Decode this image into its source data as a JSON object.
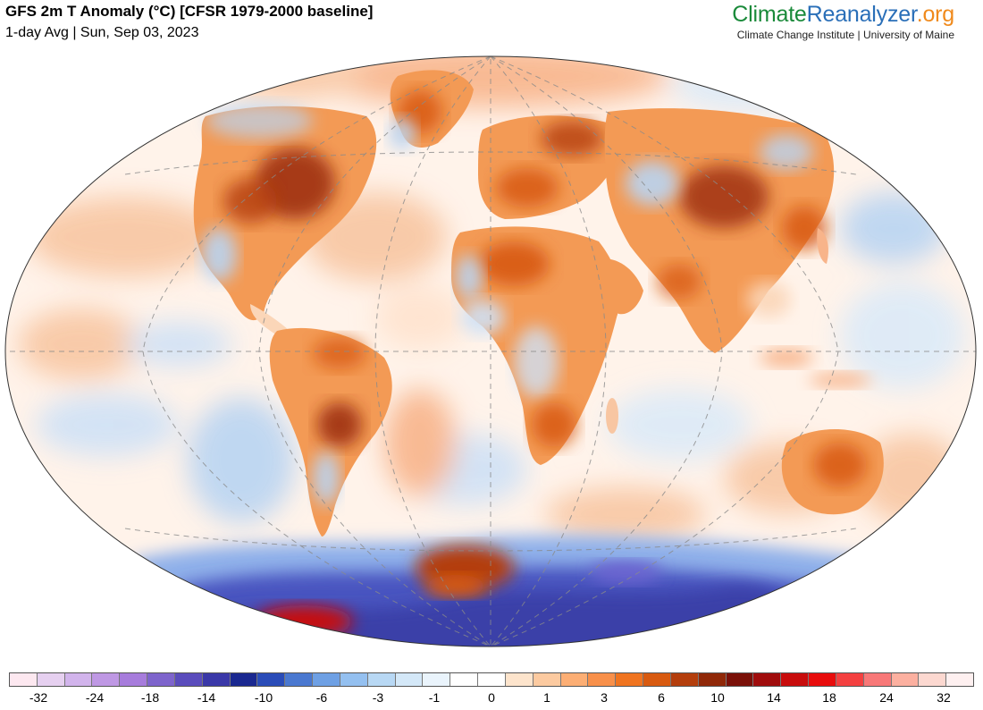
{
  "header": {
    "title": "GFS 2m T Anomaly (°C) [CFSR 1979-2000 baseline]",
    "subtitle": "1-day Avg | Sun, Sep 03, 2023"
  },
  "brand": {
    "part1": "Climate",
    "part2": "Reanalyzer",
    "part3": ".org",
    "tagline": "Climate Change Institute | University of Maine",
    "colors": {
      "climate": "#1a8a3a",
      "reanalyzer": "#2a6fb8",
      "org": "#f08a1c"
    }
  },
  "legend": {
    "tick_labels": [
      "-32",
      "-24",
      "-18",
      "-14",
      "-10",
      "-6",
      "-3",
      "-1",
      "0",
      "1",
      "3",
      "6",
      "10",
      "14",
      "18",
      "24",
      "32"
    ],
    "swatches": [
      "#fde8f0",
      "#e6d0f0",
      "#d2b4ec",
      "#bf98e4",
      "#a77cdc",
      "#7e64cc",
      "#5a4cbc",
      "#3a38a8",
      "#1a2890",
      "#2a4cb8",
      "#4a78d0",
      "#6ea0e4",
      "#94c0f0",
      "#b8d8f4",
      "#d4e8f8",
      "#eaf4fc",
      "#ffffff",
      "#ffffff",
      "#fde4cc",
      "#fccaa0",
      "#fcae74",
      "#f8904a",
      "#f07420",
      "#d85a10",
      "#b43e0c",
      "#902808",
      "#7a1008",
      "#a00c0c",
      "#c80c0c",
      "#e80c0c",
      "#f44040",
      "#f87878",
      "#fcb0a0",
      "#fcd8d0",
      "#fef0f0"
    ]
  },
  "map": {
    "projection": "Winkel-Tripel-like oval world map",
    "colors": {
      "ocean": "#fff6f0",
      "warm": "#f39a55",
      "hot": "#d6540f",
      "very_hot": "#9a2a0a",
      "cool": "#b9d4f2",
      "cold": "#6c8fd8",
      "very_cold": "#3a3fa8"
    },
    "regions": {
      "north_america": "North America",
      "south_america": "South America",
      "europe": "Europe",
      "africa": "Africa",
      "asia": "Asia",
      "australia": "Australia",
      "greenland": "Greenland",
      "antarctica": "Antarctica"
    }
  }
}
